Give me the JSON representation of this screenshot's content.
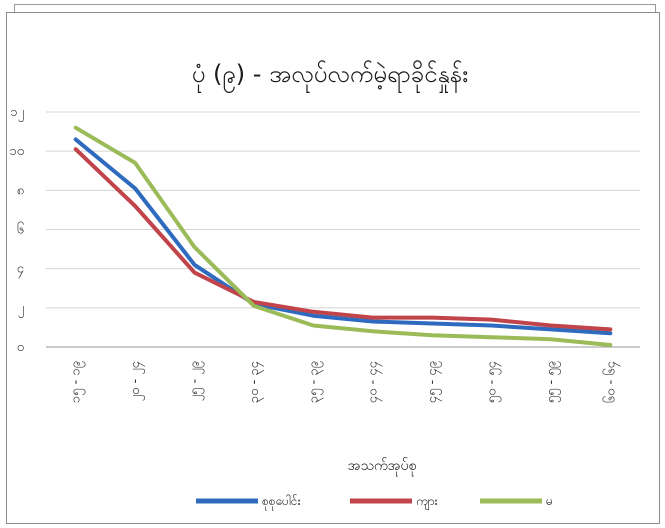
{
  "chart_data": {
    "type": "line",
    "title": "ပုံ (၉) - အလုပ်လက်မဲ့ရာခိုင်နှုန်း",
    "xlabel": "အသက်အုပ်စု",
    "ylabel": "",
    "ylim": [
      0,
      12
    ],
    "y_ticks": [
      0,
      2,
      4,
      6,
      8,
      10,
      12
    ],
    "y_tick_labels": [
      "၀",
      "၂",
      "၄",
      "၆",
      "၈",
      "၁၀",
      "၁၂"
    ],
    "categories": [
      "၁၅ - ၁၉",
      "၂၀ - ၂၄",
      "၂၅ - ၂၉",
      "၃၀ - ၃၄",
      "၃၅ - ၃၉",
      "၄၀ - ၄၄",
      "၄၅ - ၄၉",
      "၅၀ - ၅၄",
      "၅၅ - ၅၉",
      "၆၀ - ၆၄"
    ],
    "grid": true,
    "legend_position": "bottom",
    "series": [
      {
        "name": "စုစုပေါင်း",
        "color": "#2e6bbf",
        "values": [
          10.6,
          8.1,
          4.2,
          2.2,
          1.6,
          1.3,
          1.2,
          1.1,
          0.9,
          0.7
        ]
      },
      {
        "name": "ကျား",
        "color": "#c0444a",
        "values": [
          10.1,
          7.2,
          3.8,
          2.3,
          1.8,
          1.5,
          1.5,
          1.4,
          1.1,
          0.9
        ]
      },
      {
        "name": "မ",
        "color": "#9bbb59",
        "values": [
          11.2,
          9.4,
          5.1,
          2.1,
          1.1,
          0.8,
          0.6,
          0.5,
          0.4,
          0.1
        ]
      }
    ]
  }
}
